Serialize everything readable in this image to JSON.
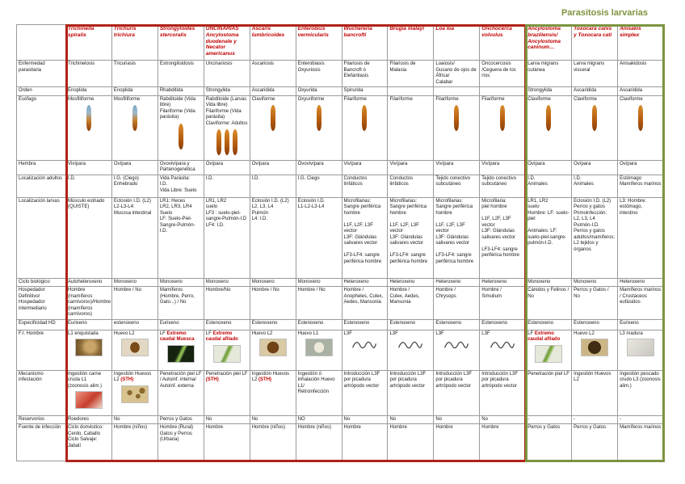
{
  "title": "Parasitosis larvarias",
  "table": {
    "corner": "",
    "species": [
      "Trichinella spiralis",
      "Trichuris trichiura",
      "Strongyloides stercoralis",
      "UNCINARIAS Ancylostoma duodenale y Necator americanus",
      "Ascaris lumbricoides",
      "Enterobius vermicularis",
      "Wuchereria bancrofti",
      "Brugia malayi",
      "Loa loa",
      "Onchocerca volvulus",
      "Ancylostoma braziliensis/ Ancylostoma caninum…",
      "Toxocara canis y Toxocara cati",
      "Anisakis simplex"
    ],
    "groups": {
      "red": {
        "first_col": 0,
        "last_col": 9,
        "color": "#b02318"
      },
      "green": {
        "first_col": 10,
        "last_col": 12,
        "color": "#7c943f"
      }
    },
    "rows": [
      {
        "label": "Enfermedad parasitaria",
        "cells": [
          "Trichinelosis",
          "Tricuriasis",
          "Estrongiloidosis",
          "Uncinariosis",
          "Ascariosis",
          "Enterobiasis\nOxyuriosis",
          "Filariosis de Bancroft ó\nElefantiasis",
          "Filariosis de Malasia",
          "Loaiosis/\nGusano de ojos de África/\nCalabar",
          "Oncocercosis\n/Ceguera de los ríos",
          "Larva migrans cutánea",
          "Larva migrans visceral",
          "Anisakidosis"
        ]
      },
      {
        "label": "Orden",
        "cells": [
          "Enoplida",
          "Enoplida",
          "Rhabditida",
          "Strongylida",
          "Ascaridida",
          "Oxyurida",
          "Spirurida",
          "",
          "",
          "",
          "Strongylida",
          "Ascaridida",
          "Ascaridida"
        ]
      },
      {
        "label": "Esófago",
        "cells": [
          {
            "text": "Mosfiliforme",
            "img": "eso-blue:1"
          },
          {
            "text": "Mosfiliforme",
            "img": "eso-blue:1"
          },
          {
            "text": "Rabditoide (Vida libre)\nFilariforme (Vida parásita)",
            "img": "eso:1"
          },
          {
            "text": "Rabditoide (Larvas Vida libre)\nFilariforme (Vida parásita)\nClaviforme: Adultos",
            "img": "eso:3"
          },
          {
            "text": "Claviforme",
            "img": "eso:1"
          },
          {
            "text": "Oxyuriforme",
            "img": "eso:1"
          },
          {
            "text": "Filariforme",
            "img": "eso:1"
          },
          "Filariforme",
          {
            "text": "Filariforme",
            "img": "eso:1"
          },
          {
            "text": "Filariforme",
            "img": "eso:1"
          },
          {
            "text": "Claviforme",
            "img": "eso:1"
          },
          {
            "text": "Claviforme",
            "img": "eso:1"
          },
          {
            "text": "Claviforme",
            "img": "eso:1"
          }
        ]
      },
      {
        "label": "Hembra",
        "cells": [
          "Vivípara",
          "Ovípara",
          "Ovovivípara y\nPartenogenética",
          "Ovípara",
          "Ovípara",
          "Ovovivípara",
          "Vivípara",
          "Vivípara",
          "Vivípara",
          "Vivípara",
          "Ovípara",
          "Ovípara",
          "Ovípara"
        ]
      },
      {
        "label": "Localización adultos",
        "cells": [
          "I.D.",
          "I.G. (Ciego)\nEnhebrado",
          "Vida Parásita:\nI.D.\nVida Libre: Suelo",
          "I.D.",
          "I.D.",
          "I.G. Ciego",
          "Conductos linfáticos",
          "Conductos linfáticos",
          "Tejido conectivo subcutáneo",
          "Tejido conectivo subcutáneo",
          "I.D.\nAnimales",
          "I.D.\nAnimales",
          "Estómago\nMamíferos marinos"
        ]
      },
      {
        "label": "Localización larvas",
        "cells": [
          "Músculo estriado\n(QUISTE)",
          "Eclosión I.D. (L2)\nL2-L3-L4:\nMucosa intestinal",
          "LR1: Heces\nLR2, LR3, LR4\nSuelo\nLF: Suelo-Piel-Sangre-Pulmón-I.D.",
          "LR1, LR2\nsuelo\nLF3 : suelo-piel-sangre-Pulmón-I.D\nLF4: I.D.",
          "Eclosión I.D. (L2)\nL2, L3, L4\nPulmón\nL4: I.D.",
          "Eclosión I.D.\nL1-L2-L3-L4",
          "Microfilarias:\nSangre periférica hombre\n\nL1F, L2F, L3F vector\nL3F: Glándulas salivares vector\n\nLF3-LF4: sangre periférica hombre",
          "Microfilarias:\nSangre periférica hombre\n\nL1F, L2F, L3F vector\nL3F: Glándulas salivares vector\n\nLF3-LF4: sangre periférica hombre",
          "Microfilarias:\nSangre periférica hombre\n\nL1F, L2F, L3F vector\nL3F: Glándulas salivares vector\n\nLF3-LF4: sangre periférica hombre",
          "Microfilaria:\npiel hombre\n\nL1F, L2F, L3F vector\nL3F: Glándulas salivares vector\n\nLF3-LF4: sangre periférica hombre",
          "LR1, LR2\nsuelo\nHombre: LF: suelo-piel\n\nAnimales: LF: suelo-piel-sangre-pulmón-I.D.",
          "Eclosión I.D. (L2)\nPerros y gatos\nPrimoinfección:\nL2, L3, L4\nPulmón-I.D.\nPerros y gatos adultos/mamíferos: L2 tejidos y órganos",
          "L3: Hombre: estómago, intestino"
        ]
      },
      {
        "label": "Ciclo biológico",
        "cells": [
          "Autoheteroxeno",
          "Monoxeno",
          "Monoxeno",
          "Monoxeno",
          "Monoxeno",
          "Monoxeno",
          "Heteroxeno",
          "Heteroxeno",
          "Heteroxeno",
          "Heteroxeno",
          "Monoxeno",
          "Monoxeno",
          "Heteroxeno"
        ]
      },
      {
        "label": "Hospedador Definitivo/ Hospedador intermediario",
        "cells": [
          "Hombre (mamíferos carnívoros)/Hombre (mamíferos carnívoros)",
          "Hombre / No",
          "Mamíferos (Hombre, Perro, Gato...) / No",
          "Hombre/No",
          "Hombre / No",
          "Hombre / No",
          "Hombre /\nAnopheles, Culex, Aedes, Mansonia",
          "Hombre /\nCulex, Aedes, Mansonia",
          "Hombre /\nChrysops",
          "Hombre /\nSimulium",
          "Cánidos y Felinos / No",
          "Perros y Gatos / No",
          "Mamíferos marinos / Crustáceos eufásidos"
        ]
      },
      {
        "label": "Especificidad HD",
        "cells": [
          "Eurixeno",
          "estenoxeno",
          "Eurixeno",
          "Estenoxeno",
          "Estenoxeno",
          "Estenoxeno",
          "Estenoxeno",
          "Estenoxeno",
          "Estenoxeno",
          "Estenoxeno",
          "Estenoxeno",
          "Estenoxeno",
          "Eurixeno"
        ]
      },
      {
        "label": "F.I. Hombre",
        "cells": [
          {
            "text": "L1 enquistada",
            "img": "photo-cyst"
          },
          {
            "text": "Huevo L2",
            "img": "egg-lemon"
          },
          {
            "text": "LF ",
            "red": "Extremo caudal Muesca",
            "img": "worm-dark"
          },
          {
            "text": "LF ",
            "red": "Extremo caudal afilado",
            "img": "worm-light"
          },
          {
            "text": "Huevo L2",
            "img": "egg-round"
          },
          {
            "text": "Huevo L1",
            "img": "egg-oval"
          },
          {
            "text": "L3F",
            "img": "squiggle"
          },
          {
            "text": "L3F",
            "img": "squiggle"
          },
          {
            "text": "L3F",
            "img": "squiggle"
          },
          {
            "text": "L3F",
            "img": "squiggle"
          },
          {
            "text": "LF ",
            "red": "Extremo caudal afilado",
            "img": "worm-light"
          },
          {
            "text": "Huevo L2",
            "img": "egg-dark"
          },
          {
            "text": "L3 madura",
            "img": "photo-pale"
          }
        ]
      },
      {
        "label": "Mecanismo infestación",
        "cells": [
          {
            "text": "Ingestión carne cruda L1\n(zoonosis alim.)",
            "img": "meat"
          },
          {
            "text": "Ingestión Huevos L2 ",
            "red": "(STH)",
            "img": "eggs-tan"
          },
          "Penetración piel LF / Autoinf. interna/ Autoinf. externa",
          {
            "text": "Penetración piel LF ",
            "red": "(STH)"
          },
          {
            "text": "Ingestión Huevos L2 ",
            "red": "(STH)"
          },
          "Ingestión ó inhalación Huevo L1/\nRetroinfección",
          "Introducción L3F por picadura artrópodo vector",
          "Introducción L3F por picadura artrópodo vector",
          "Introducción L3F por picadura artrópodo vector",
          "Introducción L3F por picadura artrópodo vector",
          "Penetración piel LF",
          "Ingestión Huevos L2",
          "Ingestión pescado crudo L3 (zoonosis alim.)"
        ]
      },
      {
        "label": "Reservorios",
        "cells": [
          "Roedores",
          "No",
          "Perros y Gatos",
          "No",
          "No",
          "NO",
          "No",
          "No",
          "No",
          "No",
          "-",
          "-",
          "-"
        ]
      },
      {
        "label": "Fuente de infección",
        "cells": [
          "Ciclo doméstico: Cerdo, Caballo\nCiclo Salvaje: Jabalí",
          "Hombre (niños)",
          "Hombre (Rural)\nGatos y Perros (Urbana)",
          "Hombre",
          "Hombre (niños)",
          "Hombre (niños)",
          "Hombre",
          "Hombre",
          "Hombre",
          "Hombre",
          "Perros y Gatos",
          "Perros y Gatos",
          "Mamíferos marinos"
        ]
      }
    ]
  }
}
